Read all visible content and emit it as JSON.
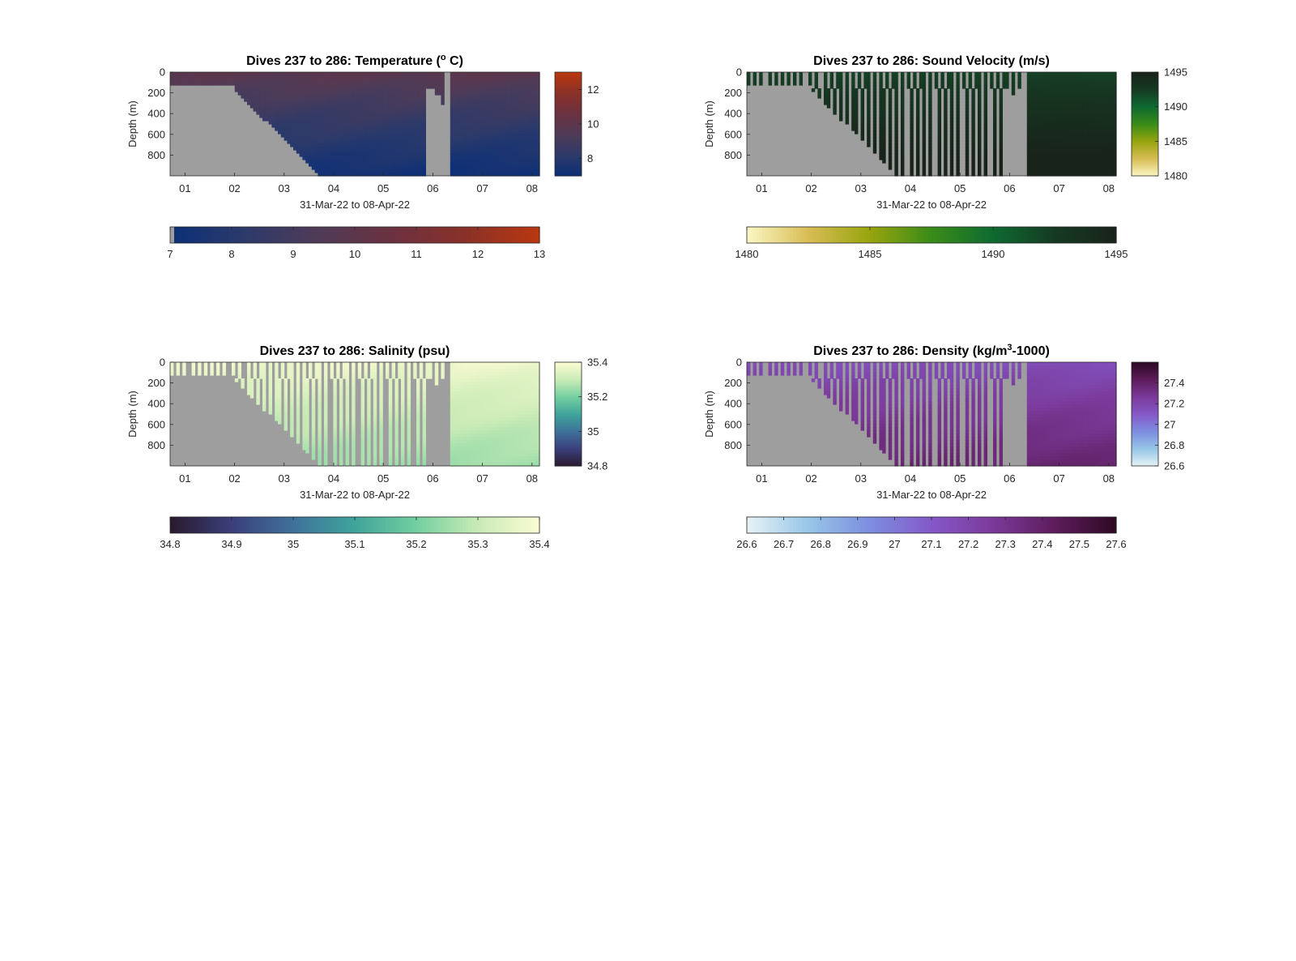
{
  "figure": {
    "background": "#ffffff",
    "missing_color": "#9e9e9e",
    "panel_count": 4
  },
  "chart_data": [
    {
      "type": "heatmap",
      "key": "temperature",
      "title_prefix": "Dives 237 to 286: Temperature (",
      "title_sup": "o",
      "title_suffix": " C)",
      "xlabel": "31-Mar-22 to 08-Apr-22",
      "ylabel": "Depth (m)",
      "x_ticks": [
        "01",
        "02",
        "03",
        "04",
        "05",
        "06",
        "07",
        "08"
      ],
      "y_ticks": [
        "0",
        "200",
        "400",
        "600",
        "800"
      ],
      "depth_range": [
        0,
        1000
      ],
      "colormap": [
        "#0b2f78",
        "#2c3a6a",
        "#4f3b57",
        "#6b3140",
        "#8a3128",
        "#ba3710"
      ],
      "clim": [
        7,
        13
      ],
      "colorbar_ticks": [
        "8",
        "10",
        "12"
      ],
      "colorbar_tick_values": [
        8,
        10,
        12
      ],
      "horizontal_colorbar_ticks": [
        "7",
        "8",
        "9",
        "10",
        "11",
        "12",
        "13"
      ],
      "horizontal_colorbar_tick_values": [
        7,
        8,
        9,
        10,
        11,
        12,
        13
      ],
      "surface_value": 10.0,
      "bottom_value": 7.3,
      "low_end_marker": true,
      "shallow_dives": false,
      "gap_right_block": true,
      "field_variation": 0.5
    },
    {
      "type": "heatmap",
      "key": "sound_velocity",
      "title_prefix": "Dives 237 to 286: Sound Velocity (m/s)",
      "title_sup": "",
      "title_suffix": "",
      "xlabel": "31-Mar-22 to 08-Apr-22",
      "ylabel": "Depth (m)",
      "x_ticks": [
        "01",
        "02",
        "03",
        "04",
        "05",
        "06",
        "07",
        "08"
      ],
      "y_ticks": [
        "0",
        "200",
        "400",
        "600",
        "800"
      ],
      "depth_range": [
        0,
        1000
      ],
      "colormap": [
        "#fbf7c4",
        "#d8bd55",
        "#98a40e",
        "#3a8c18",
        "#0e6a31",
        "#163a23",
        "#182319"
      ],
      "clim": [
        1480,
        1495
      ],
      "colorbar_ticks": [
        "1480",
        "1485",
        "1490",
        "1495"
      ],
      "colorbar_tick_values": [
        1480,
        1485,
        1490,
        1495
      ],
      "horizontal_colorbar_ticks": [
        "1480",
        "1485",
        "1490",
        "1495"
      ],
      "horizontal_colorbar_tick_values": [
        1480,
        1485,
        1490,
        1495
      ],
      "surface_value": 1492.0,
      "bottom_value": 1495.5,
      "low_end_marker": false,
      "shallow_dives": true,
      "gap_right_block": true,
      "field_variation": 0.2
    },
    {
      "type": "heatmap",
      "key": "salinity",
      "title_prefix": "Dives 237 to 286: Salinity (psu)",
      "title_sup": "",
      "title_suffix": "",
      "xlabel": "31-Mar-22 to 08-Apr-22",
      "ylabel": "Depth (m)",
      "x_ticks": [
        "01",
        "02",
        "03",
        "04",
        "05",
        "06",
        "07",
        "08"
      ],
      "y_ticks": [
        "0",
        "200",
        "400",
        "600",
        "800"
      ],
      "depth_range": [
        0,
        1000
      ],
      "colormap": [
        "#2a1a2c",
        "#3b3f7c",
        "#3f719a",
        "#3fa49b",
        "#73cfa0",
        "#c9ebb6",
        "#fbfbd2"
      ],
      "clim": [
        34.8,
        35.4
      ],
      "colorbar_ticks": [
        "34.8",
        "35",
        "35.2",
        "35.4"
      ],
      "colorbar_tick_values": [
        34.8,
        35.0,
        35.2,
        35.4
      ],
      "horizontal_colorbar_ticks": [
        "34.8",
        "34.9",
        "35",
        "35.1",
        "35.2",
        "35.3",
        "35.4"
      ],
      "horizontal_colorbar_tick_values": [
        34.8,
        34.9,
        35.0,
        35.1,
        35.2,
        35.3,
        35.4
      ],
      "surface_value": 35.38,
      "bottom_value": 35.25,
      "low_end_marker": false,
      "shallow_dives": true,
      "gap_right_block": true,
      "field_variation": 0.03
    },
    {
      "type": "heatmap",
      "key": "density",
      "title_prefix": "Dives 237 to 286: Density (kg/m",
      "title_sup": "3",
      "title_suffix": "-1000)",
      "xlabel": "31-Mar-22 to 08-Apr-22",
      "ylabel": "Depth (m)",
      "x_ticks": [
        "01",
        "02",
        "03",
        "04",
        "05",
        "06",
        "07",
        "08"
      ],
      "y_ticks": [
        "0",
        "200",
        "400",
        "600",
        "800"
      ],
      "depth_range": [
        0,
        1000
      ],
      "colormap": [
        "#e7f3f5",
        "#97c6e8",
        "#7d8ee0",
        "#8458c8",
        "#7b3a9a",
        "#5e1c5c",
        "#2d0a24"
      ],
      "clim": [
        26.6,
        27.6
      ],
      "colorbar_ticks": [
        "26.6",
        "26.8",
        "27",
        "27.2",
        "27.4"
      ],
      "colorbar_tick_values": [
        26.6,
        26.8,
        27.0,
        27.2,
        27.4
      ],
      "horizontal_colorbar_ticks": [
        "26.6",
        "26.7",
        "26.8",
        "26.9",
        "27",
        "27.1",
        "27.2",
        "27.3",
        "27.4",
        "27.5",
        "27.6"
      ],
      "horizontal_colorbar_tick_values": [
        26.6,
        26.7,
        26.8,
        26.9,
        27.0,
        27.1,
        27.2,
        27.3,
        27.4,
        27.5,
        27.6
      ],
      "surface_value": 27.15,
      "bottom_value": 27.38,
      "low_end_marker": false,
      "shallow_dives": true,
      "gap_right_block": true,
      "field_variation": 0.05
    }
  ]
}
